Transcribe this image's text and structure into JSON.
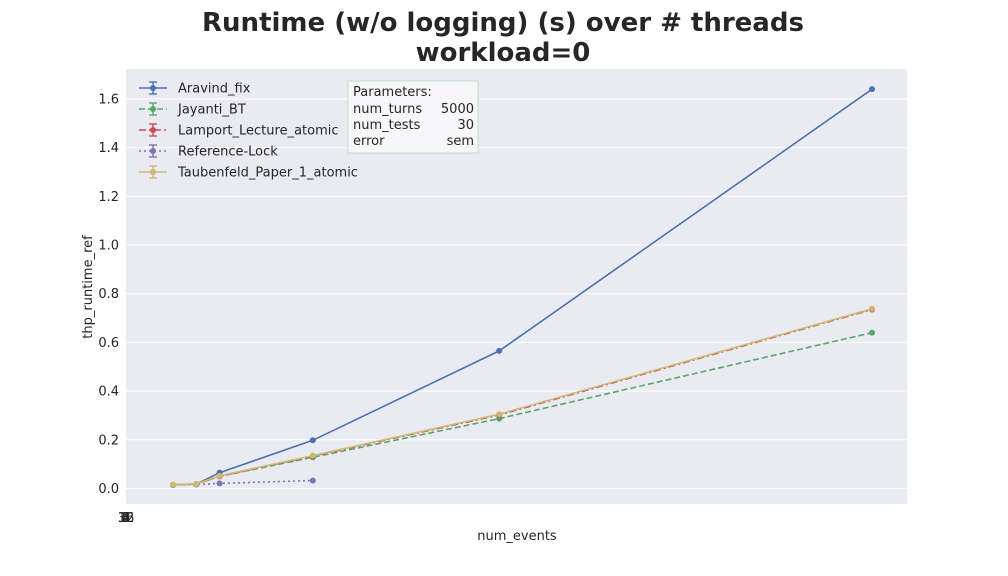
{
  "chart_data": {
    "type": "line",
    "title": "Runtime (w/o logging) (s) over # threads",
    "subtitle": "workload=0",
    "xlabel": "num_events",
    "ylabel": "thp_runtime_ref",
    "ylim": [
      -0.07,
      1.72
    ],
    "yticks": [
      0.0,
      0.2,
      0.4,
      0.6,
      0.8,
      1.0,
      1.2,
      1.4,
      1.6
    ],
    "ytick_labels": [
      "0.0",
      "0.2",
      "0.4",
      "0.6",
      "0.8",
      "1.0",
      "1.2",
      "1.4",
      "1.6"
    ],
    "xlim": [
      -2,
      32
    ],
    "xtick_labels": [
      "1",
      "2",
      "3",
      "4",
      "8",
      "16",
      "32"
    ],
    "grid": true,
    "legend_placement": "upper-left",
    "x": [
      1,
      2,
      3,
      4,
      8,
      16,
      32
    ],
    "series": [
      {
        "name": "Aravind_fix",
        "color": "#4c72b0",
        "dash": "solid",
        "x": [
          2,
          3,
          4,
          8,
          16,
          32
        ],
        "values": [
          0.015,
          0.018,
          0.065,
          0.198,
          0.565,
          1.64
        ]
      },
      {
        "name": "Jayanti_BT",
        "color": "#55a868",
        "dash": "dashed",
        "x": [
          2,
          3,
          4,
          8,
          16,
          32
        ],
        "values": [
          0.015,
          0.018,
          0.05,
          0.128,
          0.287,
          0.64
        ]
      },
      {
        "name": "Lamport_Lecture_atomic",
        "color": "#c44e52",
        "dash": "dashdot",
        "x": [
          2,
          3,
          4,
          8,
          16,
          32
        ],
        "values": [
          0.015,
          0.018,
          0.05,
          0.133,
          0.302,
          0.735
        ]
      },
      {
        "name": "Reference-Lock",
        "color": "#8172b2",
        "dash": "dotted",
        "x": [
          2,
          3,
          4,
          8
        ],
        "values": [
          0.015,
          0.017,
          0.021,
          0.033
        ]
      },
      {
        "name": "Taubenfeld_Paper_1_atomic",
        "color": "#ccb974",
        "dash": "solid",
        "x": [
          2,
          3,
          4,
          8,
          16,
          32
        ],
        "values": [
          0.016,
          0.019,
          0.052,
          0.135,
          0.305,
          0.738
        ]
      }
    ],
    "annotation": {
      "heading": "Parameters:",
      "rows": [
        {
          "key": "num_turns",
          "value": "5000"
        },
        {
          "key": "num_tests",
          "value": "30"
        },
        {
          "key": "error",
          "value": "sem"
        }
      ]
    }
  }
}
